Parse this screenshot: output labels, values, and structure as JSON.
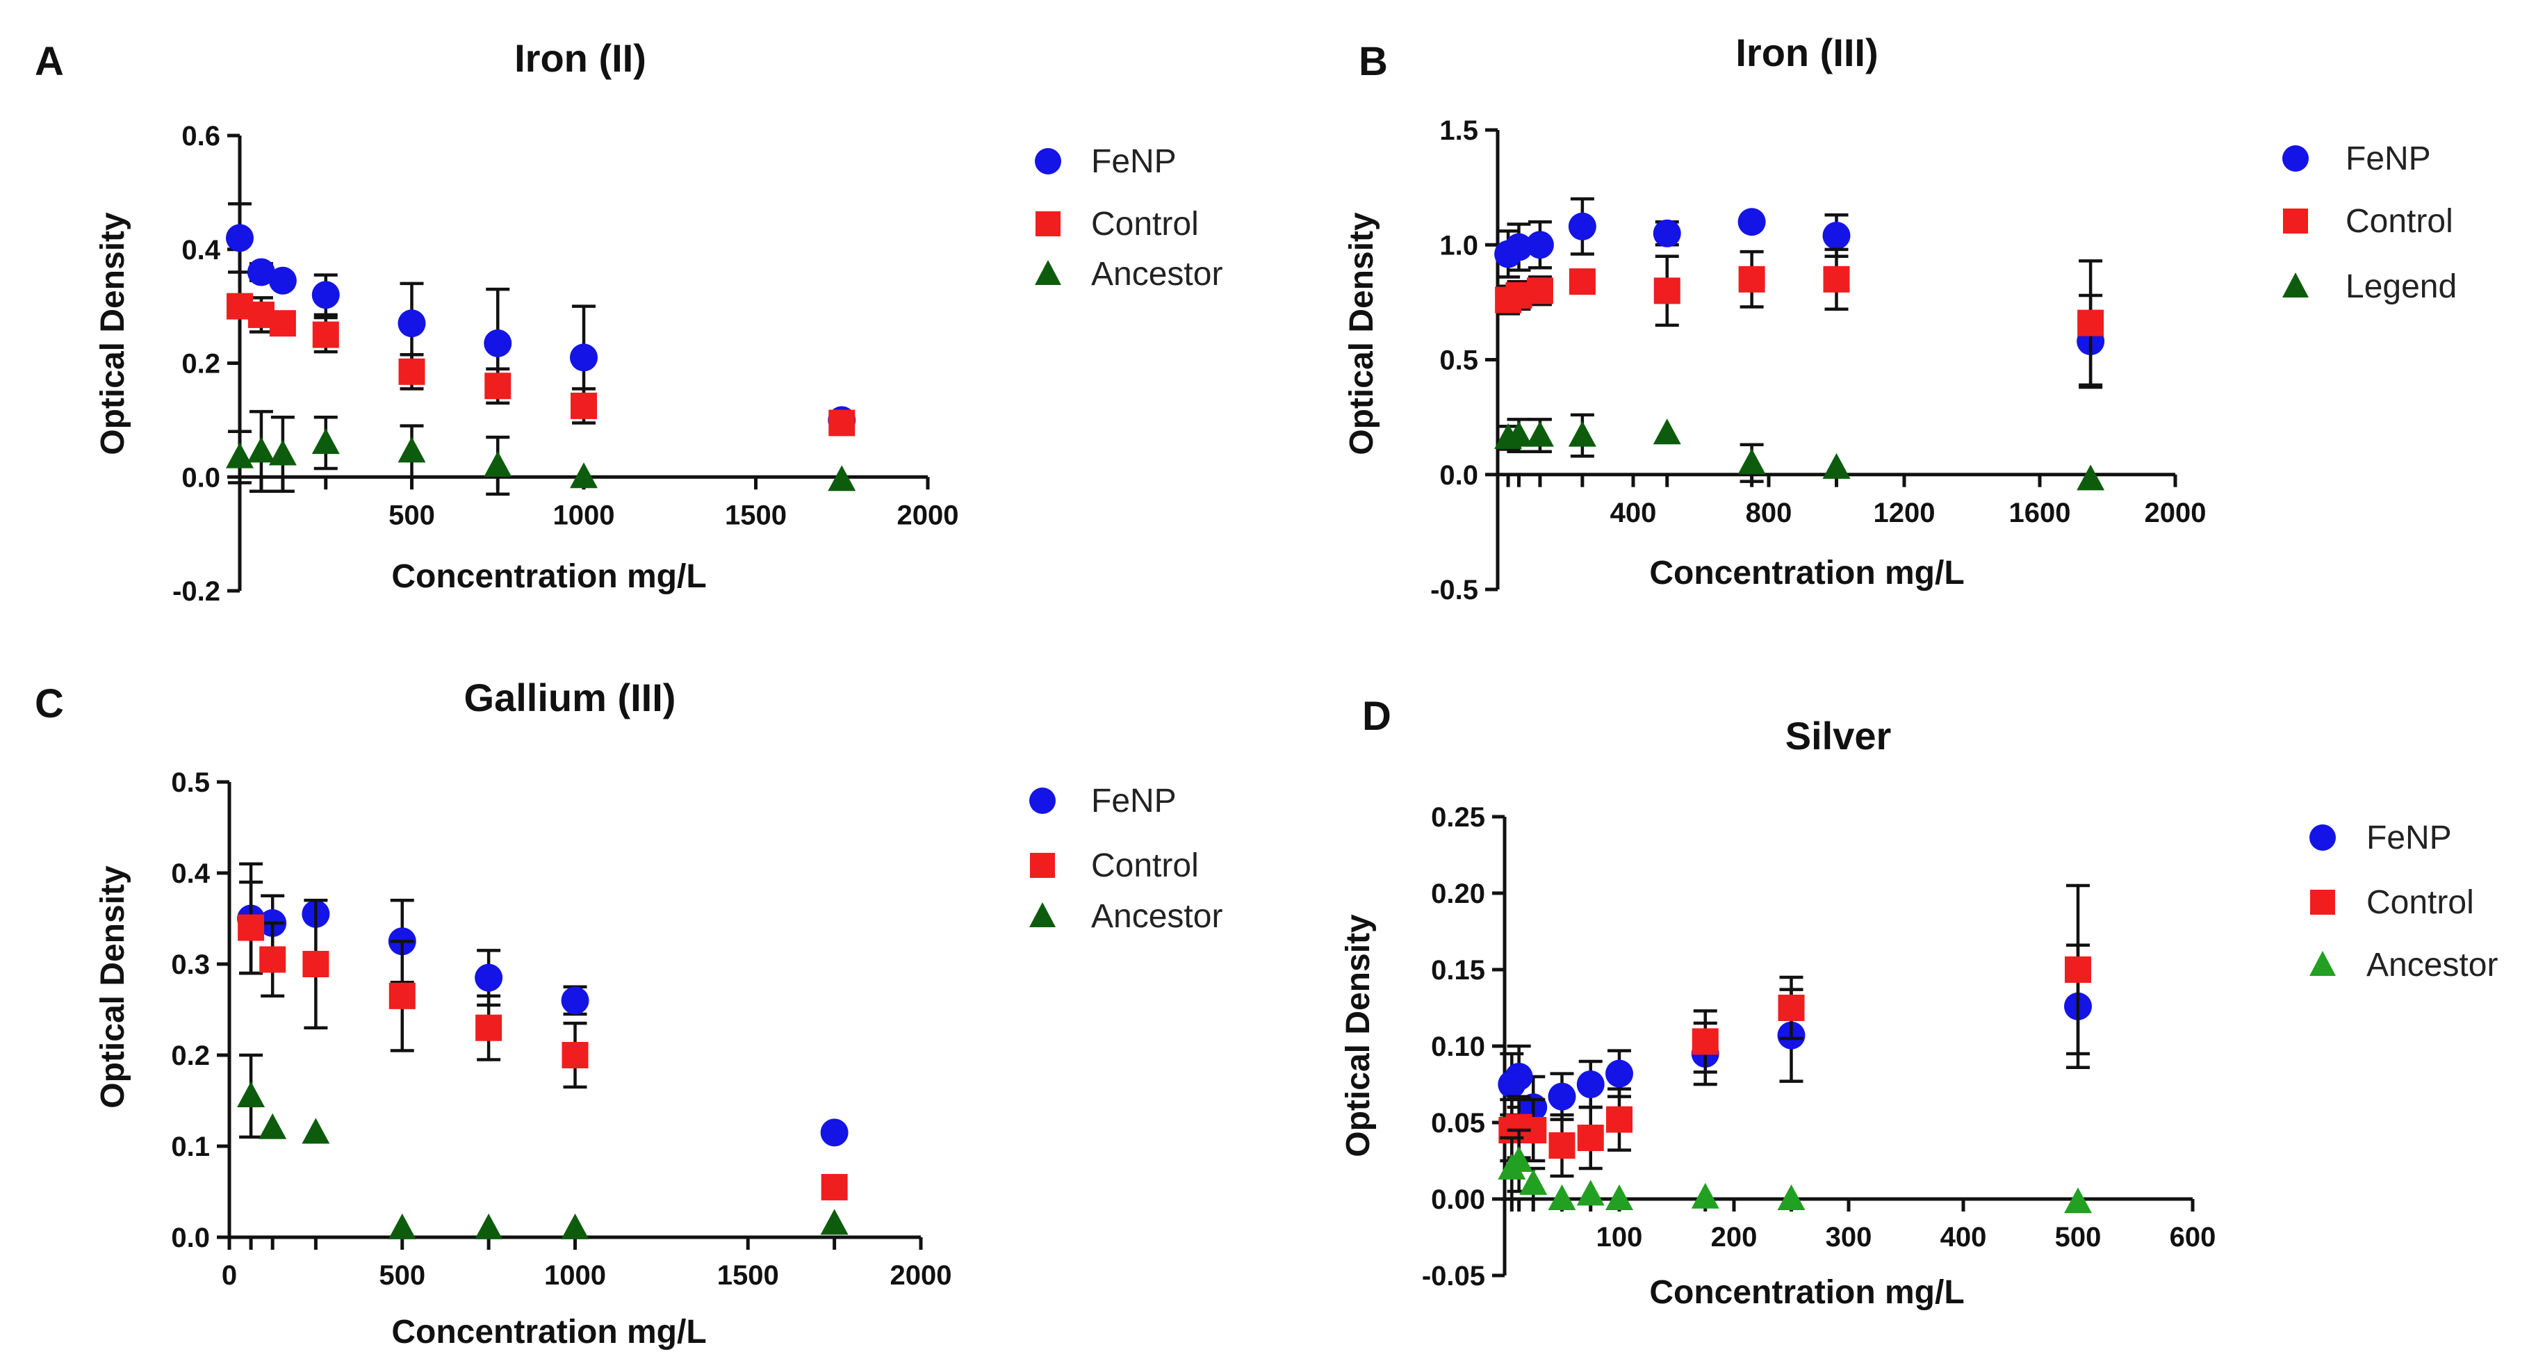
{
  "colors": {
    "FeNP": "#1414e6",
    "Control": "#f01e1e",
    "Ancestor": "#0d5c0d",
    "Ancestor_light": "#22a022",
    "axis": "#111111"
  },
  "panels": [
    {
      "letter": "A"
    },
    {
      "letter": "B"
    },
    {
      "letter": "C"
    },
    {
      "letter": "D"
    }
  ],
  "chart_data": [
    {
      "type": "scatter",
      "title": "Iron (II)",
      "xlabel": "Concentration mg/L",
      "ylabel": "Optical Density",
      "xlim": [
        0,
        2000
      ],
      "ylim": [
        -0.2,
        0.6
      ],
      "xticks": [
        500,
        1000,
        1500,
        2000
      ],
      "xtick_labels": [
        "500",
        "1000",
        "1500",
        "2000"
      ],
      "yticks": [
        -0.2,
        0.0,
        0.2,
        0.4,
        0.6
      ],
      "ytick_labels": [
        "-0.2",
        "0.0",
        "0.2",
        "0.4",
        "0.6"
      ],
      "legend": [
        "FeNP",
        "Control",
        "Ancestor"
      ],
      "series": [
        {
          "name": "FeNP",
          "marker": "circle",
          "color": "#1414e6",
          "x": [
            0,
            62.5,
            125,
            250,
            500,
            750,
            1000,
            1750
          ],
          "y": [
            0.42,
            0.36,
            0.345,
            0.32,
            0.27,
            0.235,
            0.21,
            0.1
          ],
          "err": [
            0.06,
            0.015,
            0.01,
            0.035,
            0.07,
            0.095,
            0.09,
            0.01
          ]
        },
        {
          "name": "Control",
          "marker": "square",
          "color": "#f01e1e",
          "x": [
            0,
            62.5,
            125,
            250,
            500,
            750,
            1000,
            1750
          ],
          "y": [
            0.3,
            0.285,
            0.27,
            0.25,
            0.185,
            0.16,
            0.125,
            0.095
          ],
          "err": [
            0.02,
            0.03,
            0.02,
            0.03,
            0.03,
            0.03,
            0.03,
            0.01
          ]
        },
        {
          "name": "Ancestor",
          "marker": "triangle",
          "color": "#0d5c0d",
          "x": [
            0,
            62.5,
            125,
            250,
            500,
            750,
            1000,
            1750
          ],
          "y": [
            0.035,
            0.045,
            0.04,
            0.06,
            0.045,
            0.02,
            0.0,
            -0.005
          ],
          "err": [
            0.045,
            0.07,
            0.065,
            0.045,
            0.045,
            0.05,
            0.0,
            0.0
          ]
        }
      ]
    },
    {
      "type": "scatter",
      "title": "Iron (III)",
      "xlabel": "Concentration mg/L",
      "ylabel": "Optical Density",
      "xlim": [
        0,
        2000
      ],
      "ylim": [
        -0.5,
        1.5
      ],
      "xticks": [
        400,
        800,
        1200,
        1600,
        2000
      ],
      "xtick_labels": [
        "400",
        "800",
        "1200",
        "1600",
        "2000"
      ],
      "yticks": [
        -0.5,
        0.0,
        0.5,
        1.0,
        1.5
      ],
      "ytick_labels": [
        "-0.5",
        "0.0",
        "0.5",
        "1.0",
        "1.5"
      ],
      "legend": [
        "FeNP",
        "Control",
        "Legend"
      ],
      "series": [
        {
          "name": "FeNP",
          "marker": "circle",
          "color": "#1414e6",
          "x": [
            31,
            62.5,
            125,
            250,
            500,
            750,
            1000,
            1750
          ],
          "y": [
            0.96,
            0.99,
            1.0,
            1.08,
            1.05,
            1.1,
            1.04,
            0.58
          ],
          "err": [
            0.1,
            0.1,
            0.1,
            0.12,
            0.05,
            0.02,
            0.09,
            0.2
          ]
        },
        {
          "name": "Control",
          "marker": "square",
          "color": "#f01e1e",
          "x": [
            31,
            62.5,
            125,
            250,
            500,
            750,
            1000,
            1750
          ],
          "y": [
            0.76,
            0.78,
            0.8,
            0.84,
            0.8,
            0.85,
            0.85,
            0.66
          ],
          "err": [
            0.06,
            0.06,
            0.06,
            0.05,
            0.15,
            0.12,
            0.13,
            0.27
          ]
        },
        {
          "name": "Legend",
          "marker": "triangle",
          "color": "#0d5c0d",
          "x": [
            31,
            62.5,
            125,
            250,
            500,
            750,
            1000,
            1750
          ],
          "y": [
            0.16,
            0.17,
            0.17,
            0.17,
            0.18,
            0.05,
            0.03,
            -0.02
          ],
          "err": [
            0.05,
            0.07,
            0.07,
            0.09,
            0.0,
            0.08,
            0.0,
            0.0
          ]
        }
      ]
    },
    {
      "type": "scatter",
      "title": "Gallium (III)",
      "xlabel": "Concentration mg/L",
      "ylabel": "Optical Density",
      "xlim": [
        0,
        2000
      ],
      "ylim": [
        0.0,
        0.5
      ],
      "xticks": [
        0,
        500,
        1000,
        1500,
        2000
      ],
      "xtick_labels": [
        "0",
        "500",
        "1000",
        "1500",
        "2000"
      ],
      "yticks": [
        0.0,
        0.1,
        0.2,
        0.3,
        0.4,
        0.5
      ],
      "ytick_labels": [
        "0.0",
        "0.1",
        "0.2",
        "0.3",
        "0.4",
        "0.5"
      ],
      "legend": [
        "FeNP",
        "Control",
        "Ancestor"
      ],
      "series": [
        {
          "name": "FeNP",
          "marker": "circle",
          "color": "#1414e6",
          "x": [
            62.5,
            125,
            250,
            500,
            750,
            1000,
            1750
          ],
          "y": [
            0.35,
            0.345,
            0.355,
            0.325,
            0.285,
            0.26,
            0.115
          ],
          "err": [
            0.06,
            0.03,
            0.0,
            0.045,
            0.03,
            0.015,
            0.0
          ]
        },
        {
          "name": "Control",
          "marker": "square",
          "color": "#f01e1e",
          "x": [
            62.5,
            125,
            250,
            500,
            750,
            1000,
            1750
          ],
          "y": [
            0.34,
            0.305,
            0.3,
            0.265,
            0.23,
            0.2,
            0.055
          ],
          "err": [
            0.05,
            0.04,
            0.07,
            0.06,
            0.035,
            0.035,
            0.0
          ]
        },
        {
          "name": "Ancestor",
          "marker": "triangle",
          "color": "#0d5c0d",
          "x": [
            62.5,
            125,
            250,
            500,
            750,
            1000,
            1750
          ],
          "y": [
            0.155,
            0.12,
            0.115,
            0.01,
            0.01,
            0.01,
            0.015
          ],
          "err": [
            0.045,
            0.0,
            0.0,
            0.0,
            0.0,
            0.0,
            0.0
          ]
        }
      ]
    },
    {
      "type": "scatter",
      "title": "Silver",
      "xlabel": "Concentration mg/L",
      "ylabel": "Optical Density",
      "xlim": [
        0,
        600
      ],
      "ylim": [
        -0.05,
        0.25
      ],
      "xticks": [
        100,
        200,
        300,
        400,
        500,
        600
      ],
      "xtick_labels": [
        "100",
        "200",
        "300",
        "400",
        "500",
        "600"
      ],
      "yticks": [
        -0.05,
        0.0,
        0.05,
        0.1,
        0.15,
        0.2,
        0.25
      ],
      "ytick_labels": [
        "-0.05",
        "0.00",
        "0.05",
        "0.10",
        "0.15",
        "0.20",
        "0.25"
      ],
      "legend": [
        "FeNP",
        "Control",
        "Ancestor"
      ],
      "series": [
        {
          "name": "FeNP",
          "marker": "circle",
          "color": "#1414e6",
          "x": [
            6.25,
            12.5,
            25,
            50,
            75,
            100,
            175,
            250,
            500
          ],
          "y": [
            0.075,
            0.08,
            0.06,
            0.067,
            0.075,
            0.082,
            0.095,
            0.107,
            0.126
          ],
          "err": [
            0.02,
            0.02,
            0.02,
            0.015,
            0.015,
            0.015,
            0.02,
            0.03,
            0.04
          ]
        },
        {
          "name": "Control",
          "marker": "square",
          "color": "#f01e1e",
          "x": [
            6.25,
            12.5,
            25,
            50,
            75,
            100,
            175,
            250,
            500
          ],
          "y": [
            0.045,
            0.047,
            0.045,
            0.035,
            0.04,
            0.052,
            0.103,
            0.125,
            0.15
          ],
          "err": [
            0.02,
            0.02,
            0.02,
            0.02,
            0.02,
            0.02,
            0.02,
            0.02,
            0.055
          ]
        },
        {
          "name": "Ancestor",
          "marker": "triangle",
          "color": "#22a022",
          "x": [
            6.25,
            12.5,
            25,
            50,
            75,
            100,
            175,
            250,
            500
          ],
          "y": [
            0.02,
            0.025,
            0.01,
            0.0,
            0.003,
            0.0,
            0.001,
            0.0,
            -0.002
          ],
          "err": [
            0.02,
            0.02,
            0.01,
            0.0,
            0.0,
            0.0,
            0.0,
            0.0,
            0.0
          ]
        }
      ]
    }
  ]
}
